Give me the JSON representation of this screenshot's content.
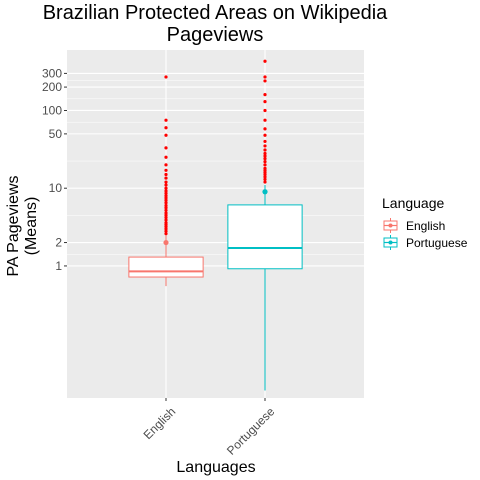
{
  "chart_data": {
    "type": "box",
    "title": "Brazilian Protected Areas on Wikipedia Pageviews",
    "title_lines": [
      "Brazilian Protected Areas on Wikipedia",
      "Pageviews"
    ],
    "xlabel": "Languages",
    "ylabel_lines": [
      "PA Pageviews",
      "(Means)"
    ],
    "y_scale": "log10",
    "ylim": [
      0.02,
      600
    ],
    "y_ticks": [
      1,
      2,
      10,
      50,
      100,
      200,
      300
    ],
    "y_tick_labels": [
      "1",
      "2",
      "10",
      "50",
      "100",
      "200",
      "300"
    ],
    "categories": [
      "English",
      "Portuguese"
    ],
    "grid": true,
    "legend": {
      "title": "Language",
      "position": "right",
      "entries": [
        "English",
        "Portuguese"
      ]
    },
    "colors": {
      "English": "#F8766D",
      "Portuguese": "#00BFC4",
      "outlier": "#FF0000",
      "panel": "#EBEBEB",
      "grid": "#FFFFFF"
    },
    "series": [
      {
        "name": "English",
        "whisker_low": 0.55,
        "q1": 0.72,
        "median": 0.85,
        "q3": 1.3,
        "whisker_high": 2.6,
        "mean": 2.0,
        "outliers": [
          2.6,
          2.8,
          3.0,
          3.2,
          3.4,
          3.6,
          3.9,
          4.2,
          4.5,
          4.8,
          5.2,
          5.6,
          6.0,
          6.5,
          7.0,
          7.5,
          8.0,
          8.6,
          9.2,
          10,
          11,
          12,
          13.5,
          15,
          17,
          20,
          25,
          33,
          48,
          60,
          75,
          270
        ]
      },
      {
        "name": "Portuguese",
        "whisker_low": 0.025,
        "q1": 0.92,
        "median": 1.7,
        "q3": 6.1,
        "whisker_high": 11,
        "mean": 9.0,
        "outliers": [
          12,
          13,
          14,
          15,
          16,
          17,
          18,
          20,
          22,
          24,
          26,
          28,
          31,
          35,
          40,
          48,
          58,
          75,
          100,
          130,
          160,
          240,
          270,
          430
        ]
      }
    ]
  }
}
